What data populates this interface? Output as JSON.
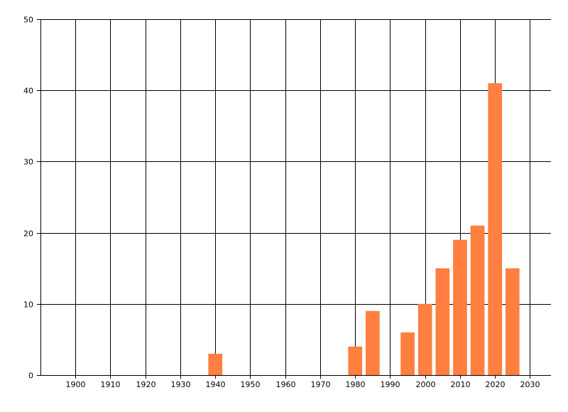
{
  "chart_data": {
    "type": "bar",
    "title": "",
    "xlabel": "",
    "ylabel": "",
    "x": [
      1940,
      1980,
      1985,
      1995,
      2000,
      2005,
      2010,
      2015,
      2020,
      2025
    ],
    "values": [
      3,
      4,
      9,
      6,
      10,
      15,
      19,
      21,
      41,
      15
    ],
    "bar_width_years": 4,
    "xlim": [
      1890,
      2036
    ],
    "ylim": [
      0,
      50
    ],
    "xticks": [
      1900,
      1910,
      1920,
      1930,
      1940,
      1950,
      1960,
      1970,
      1980,
      1990,
      2000,
      2010,
      2020,
      2030
    ],
    "yticks": [
      0,
      10,
      20,
      30,
      40,
      50
    ],
    "grid": true,
    "bar_color": "#FF7F40"
  }
}
